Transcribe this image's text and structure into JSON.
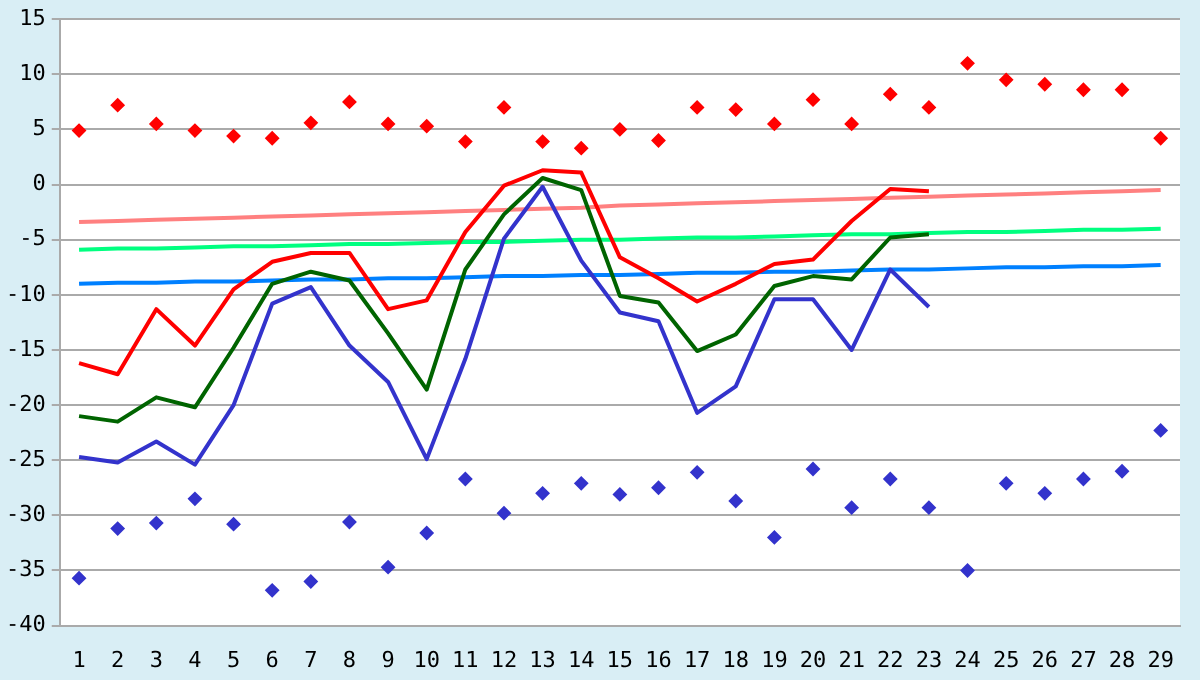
{
  "chart_data": {
    "type": "line",
    "x": [
      1,
      2,
      3,
      4,
      5,
      6,
      7,
      8,
      9,
      10,
      11,
      12,
      13,
      14,
      15,
      16,
      17,
      18,
      19,
      20,
      21,
      22,
      23,
      24,
      25,
      26,
      27,
      28,
      29
    ],
    "xlim": [
      0.5,
      29.5
    ],
    "xticks": [
      1,
      2,
      3,
      4,
      5,
      6,
      7,
      8,
      9,
      10,
      11,
      12,
      13,
      14,
      15,
      16,
      17,
      18,
      19,
      20,
      21,
      22,
      23,
      24,
      25,
      26,
      27,
      28,
      29
    ],
    "ylim": [
      -40,
      15
    ],
    "yticks": [
      -40,
      -35,
      -30,
      -25,
      -20,
      -15,
      -10,
      -5,
      0,
      5,
      10,
      15
    ],
    "grid": "y",
    "legend": false,
    "marker": "none",
    "line_style": "solid",
    "series": [
      {
        "color": "#ff0000",
        "values": [
          -16.2,
          -17.2,
          -11.3,
          -14.6,
          -9.5,
          -7,
          -6.2,
          -6.2,
          -11.3,
          -10.5,
          -4.3,
          -0.1,
          1.3,
          1.1,
          -6.6,
          -8.5,
          -10.6,
          -9,
          -7.2,
          -6.8,
          -3.3,
          -0.4,
          -0.6,
          null,
          null,
          null,
          null,
          null,
          null
        ]
      },
      {
        "color": "#006400",
        "values": [
          -21,
          -21.5,
          -19.3,
          -20.2,
          -14.8,
          -9,
          -7.9,
          -8.7,
          -13.5,
          -18.6,
          -7.7,
          -2.7,
          0.6,
          -0.5,
          -10.1,
          -10.7,
          -15.1,
          -13.6,
          -9.2,
          -8.3,
          -8.6,
          -4.8,
          -4.5,
          null,
          null,
          null,
          null,
          null,
          null
        ]
      },
      {
        "color": "#3333cc",
        "values": [
          -24.7,
          -25.2,
          -23.3,
          -25.4,
          -20,
          -10.8,
          -9.3,
          -14.6,
          -17.9,
          -24.9,
          -15.8,
          -4.9,
          -0.2,
          -6.9,
          -11.6,
          -12.4,
          -20.7,
          -18.3,
          -10.4,
          -10.4,
          -15,
          -7.7,
          -11.1,
          null,
          null,
          null,
          null,
          null,
          null
        ]
      },
      {
        "color": "#ff8080",
        "values": [
          -3.4,
          -3.3,
          -3.2,
          -3.1,
          -3,
          -2.9,
          -2.8,
          -2.7,
          -2.6,
          -2.5,
          -2.4,
          -2.3,
          -2.2,
          -2.1,
          -1.9,
          -1.8,
          -1.7,
          -1.6,
          -1.5,
          -1.4,
          -1.3,
          -1.2,
          -1.1,
          -1,
          -0.9,
          -0.8,
          -0.7,
          -0.6,
          -0.5
        ]
      },
      {
        "color": "#00ff80",
        "values": [
          -5.9,
          -5.8,
          -5.8,
          -5.7,
          -5.6,
          -5.6,
          -5.5,
          -5.4,
          -5.4,
          -5.3,
          -5.2,
          -5.2,
          -5.1,
          -5,
          -5,
          -4.9,
          -4.8,
          -4.8,
          -4.7,
          -4.6,
          -4.5,
          -4.5,
          -4.4,
          -4.3,
          -4.3,
          -4.2,
          -4.1,
          -4.1,
          -4
        ]
      },
      {
        "color": "#0080ff",
        "values": [
          -9,
          -8.9,
          -8.9,
          -8.8,
          -8.8,
          -8.7,
          -8.6,
          -8.6,
          -8.5,
          -8.5,
          -8.4,
          -8.3,
          -8.3,
          -8.2,
          -8.2,
          -8.1,
          -8,
          -8,
          -7.9,
          -7.9,
          -7.8,
          -7.7,
          -7.7,
          -7.6,
          -7.5,
          -7.5,
          -7.4,
          -7.4,
          -7.3
        ]
      },
      {
        "type": "scatter",
        "marker": "diamond",
        "color": "#ff0000",
        "values": [
          4.9,
          7.2,
          5.5,
          4.9,
          4.4,
          4.2,
          5.6,
          7.5,
          5.5,
          5.3,
          3.9,
          7,
          3.9,
          3.3,
          5,
          4,
          7,
          6.8,
          5.5,
          7.7,
          5.5,
          8.2,
          7,
          11,
          9.5,
          9.1,
          8.6,
          8.6,
          4.2
        ]
      },
      {
        "type": "scatter",
        "marker": "diamond",
        "color": "#3333cc",
        "values": [
          -35.7,
          -31.2,
          -30.7,
          -28.5,
          -30.8,
          -36.8,
          -36,
          -30.6,
          -34.7,
          -31.6,
          -26.7,
          -29.8,
          -28,
          -27.1,
          -28.1,
          -27.5,
          -26.1,
          -28.7,
          -32,
          -25.8,
          -29.3,
          -26.7,
          -29.3,
          -35,
          -27.1,
          -28,
          -26.7,
          -26,
          -22.3
        ]
      }
    ]
  }
}
